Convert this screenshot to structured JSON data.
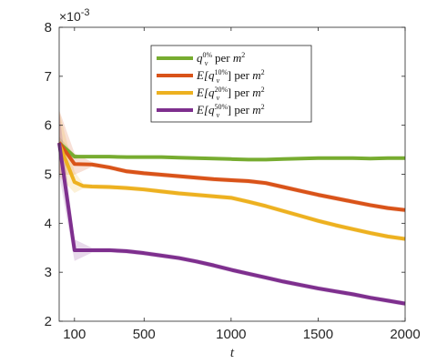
{
  "chart_data": {
    "type": "line",
    "title": "",
    "xlabel": "t",
    "ylabel": "",
    "y_multiplier_label": "×10",
    "y_multiplier_exponent": "-3",
    "xlim": [
      12,
      2000
    ],
    "ylim": [
      2,
      8
    ],
    "x_ticks": [
      100,
      500,
      1000,
      1500,
      2000
    ],
    "y_ticks": [
      2,
      3,
      4,
      5,
      6,
      7,
      8
    ],
    "grid": false,
    "legend_position": "top-center",
    "series": [
      {
        "name": "q_v^{0%} per m^2",
        "color": "#77ac30",
        "x": [
          12,
          100,
          200,
          300,
          400,
          500,
          600,
          700,
          800,
          900,
          1000,
          1100,
          1200,
          1300,
          1400,
          1500,
          1600,
          1700,
          1800,
          1900,
          2000
        ],
        "values": [
          5.64,
          5.36,
          5.36,
          5.36,
          5.35,
          5.35,
          5.35,
          5.34,
          5.33,
          5.32,
          5.31,
          5.3,
          5.3,
          5.31,
          5.32,
          5.33,
          5.33,
          5.33,
          5.32,
          5.33,
          5.33
        ]
      },
      {
        "name": "E[q_v^{10%}] per m^2",
        "color": "#d95319",
        "x": [
          12,
          100,
          200,
          300,
          400,
          500,
          600,
          700,
          800,
          900,
          1000,
          1100,
          1200,
          1300,
          1400,
          1500,
          1600,
          1700,
          1800,
          1900,
          2000
        ],
        "values": [
          5.65,
          5.21,
          5.2,
          5.14,
          5.06,
          5.02,
          4.99,
          4.96,
          4.93,
          4.9,
          4.88,
          4.86,
          4.82,
          4.74,
          4.66,
          4.58,
          4.51,
          4.44,
          4.37,
          4.31,
          4.27
        ]
      },
      {
        "name": "E[q_v^{20%}] per m^2",
        "color": "#edb120",
        "x": [
          12,
          100,
          150,
          200,
          300,
          400,
          500,
          600,
          700,
          800,
          900,
          1000,
          1100,
          1200,
          1300,
          1400,
          1500,
          1600,
          1700,
          1800,
          1900,
          2000
        ],
        "values": [
          5.62,
          4.84,
          4.76,
          4.75,
          4.74,
          4.72,
          4.69,
          4.65,
          4.61,
          4.58,
          4.55,
          4.52,
          4.44,
          4.35,
          4.25,
          4.15,
          4.05,
          3.96,
          3.88,
          3.8,
          3.73,
          3.68
        ]
      },
      {
        "name": "E[q_v^{50%}] per m^2",
        "color": "#7e2f8e",
        "x": [
          12,
          100,
          200,
          300,
          400,
          500,
          600,
          700,
          800,
          900,
          1000,
          1100,
          1200,
          1300,
          1400,
          1500,
          1600,
          1700,
          1800,
          1900,
          2000
        ],
        "values": [
          5.64,
          3.45,
          3.45,
          3.45,
          3.43,
          3.39,
          3.34,
          3.29,
          3.22,
          3.14,
          3.05,
          2.97,
          2.89,
          2.81,
          2.74,
          2.67,
          2.61,
          2.55,
          2.48,
          2.42,
          2.36
        ]
      }
    ]
  },
  "legend": {
    "items": [
      {
        "base": "q",
        "sub": "v",
        "sup": "0%",
        "prefix": "",
        "close": "",
        "suffix": " per ",
        "unit": "m",
        "unit_sup": "2"
      },
      {
        "base": "q",
        "sub": "v",
        "sup": "10%",
        "prefix": "E[",
        "close": "]",
        "suffix": " per ",
        "unit": "m",
        "unit_sup": "2"
      },
      {
        "base": "q",
        "sub": "v",
        "sup": "20%",
        "prefix": "E[",
        "close": "]",
        "suffix": " per ",
        "unit": "m",
        "unit_sup": "2"
      },
      {
        "base": "q",
        "sub": "v",
        "sup": "50%",
        "prefix": "E[",
        "close": "]",
        "suffix": " per ",
        "unit": "m",
        "unit_sup": "2"
      }
    ]
  }
}
